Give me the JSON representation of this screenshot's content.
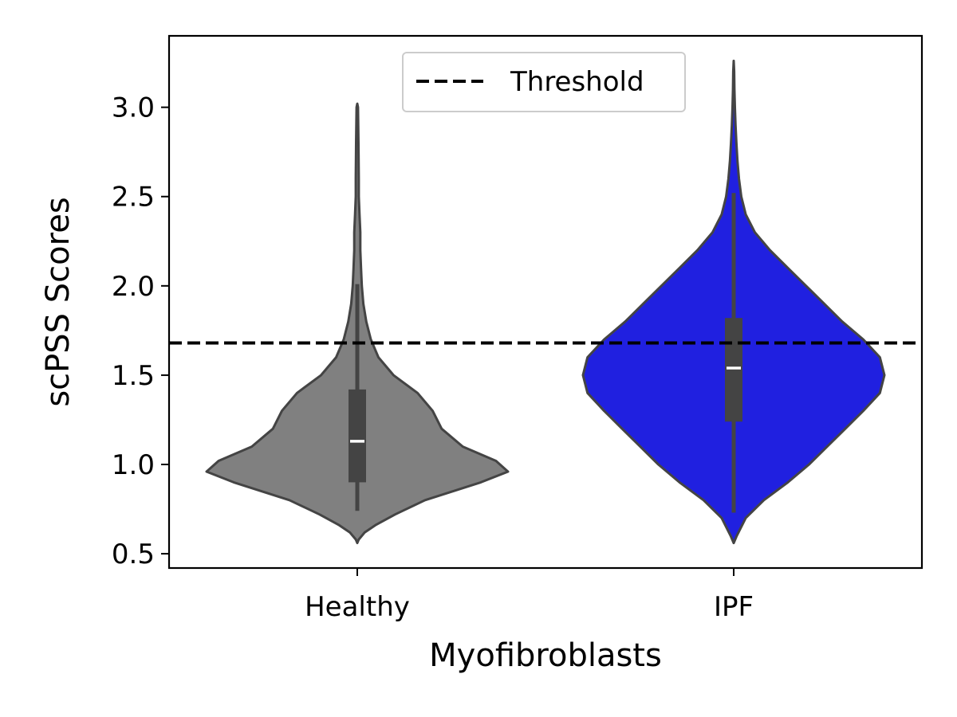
{
  "chart_data": {
    "type": "violin",
    "title": "",
    "xlabel": "Myofibroblasts",
    "ylabel": "scPSS Scores",
    "ylim": [
      0.42,
      3.4
    ],
    "yticks": [
      0.5,
      1.0,
      1.5,
      2.0,
      2.5,
      3.0
    ],
    "ytick_labels": [
      "0.5",
      "1.0",
      "1.5",
      "2.0",
      "2.5",
      "3.0"
    ],
    "grid": false,
    "legend": {
      "placement": "top-center",
      "entries": [
        "Threshold"
      ]
    },
    "threshold": 1.68,
    "categories": [
      "Healthy",
      "IPF"
    ],
    "groups": [
      {
        "category": "Healthy",
        "color": "#808080",
        "median": 1.13,
        "q1": 0.9,
        "q3": 1.42,
        "whisker_low": 0.74,
        "whisker_high": 2.01,
        "density": [
          [
            0.56,
            0.0
          ],
          [
            0.58,
            0.01
          ],
          [
            0.62,
            0.05
          ],
          [
            0.66,
            0.12
          ],
          [
            0.72,
            0.25
          ],
          [
            0.8,
            0.45
          ],
          [
            0.9,
            0.82
          ],
          [
            0.96,
            1.0
          ],
          [
            1.02,
            0.92
          ],
          [
            1.1,
            0.7
          ],
          [
            1.2,
            0.56
          ],
          [
            1.3,
            0.5
          ],
          [
            1.4,
            0.4
          ],
          [
            1.5,
            0.24
          ],
          [
            1.6,
            0.14
          ],
          [
            1.7,
            0.09
          ],
          [
            1.8,
            0.06
          ],
          [
            1.9,
            0.04
          ],
          [
            2.0,
            0.03
          ],
          [
            2.1,
            0.025
          ],
          [
            2.2,
            0.02
          ],
          [
            2.3,
            0.02
          ],
          [
            2.4,
            0.015
          ],
          [
            2.5,
            0.01
          ],
          [
            2.6,
            0.01
          ],
          [
            2.8,
            0.008
          ],
          [
            3.0,
            0.005
          ],
          [
            3.02,
            0.0
          ]
        ]
      },
      {
        "category": "IPF",
        "color": "#2020e0",
        "median": 1.54,
        "q1": 1.24,
        "q3": 1.82,
        "whisker_low": 0.73,
        "whisker_high": 2.52,
        "density": [
          [
            0.56,
            0.0
          ],
          [
            0.6,
            0.02
          ],
          [
            0.7,
            0.08
          ],
          [
            0.8,
            0.2
          ],
          [
            0.9,
            0.36
          ],
          [
            1.0,
            0.5
          ],
          [
            1.1,
            0.62
          ],
          [
            1.2,
            0.74
          ],
          [
            1.3,
            0.86
          ],
          [
            1.4,
            0.97
          ],
          [
            1.5,
            1.0
          ],
          [
            1.6,
            0.97
          ],
          [
            1.7,
            0.86
          ],
          [
            1.8,
            0.72
          ],
          [
            1.9,
            0.6
          ],
          [
            2.0,
            0.48
          ],
          [
            2.1,
            0.36
          ],
          [
            2.2,
            0.24
          ],
          [
            2.3,
            0.14
          ],
          [
            2.4,
            0.08
          ],
          [
            2.5,
            0.05
          ],
          [
            2.6,
            0.035
          ],
          [
            2.7,
            0.025
          ],
          [
            2.8,
            0.018
          ],
          [
            2.9,
            0.012
          ],
          [
            3.0,
            0.008
          ],
          [
            3.1,
            0.005
          ],
          [
            3.2,
            0.003
          ],
          [
            3.26,
            0.0
          ]
        ]
      }
    ]
  }
}
